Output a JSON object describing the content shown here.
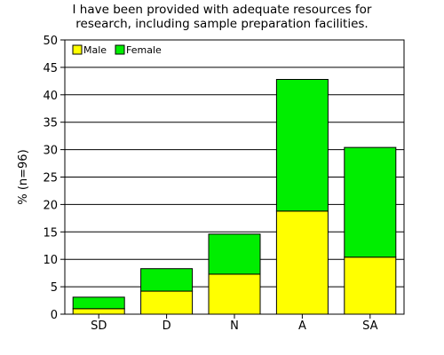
{
  "chart_data": {
    "type": "bar",
    "stacked": true,
    "title_lines": [
      "I have been provided with adequate resources for",
      "research, including sample preparation facilities."
    ],
    "xlabel": "",
    "ylabel": "% (n=96)",
    "categories": [
      "SD",
      "D",
      "N",
      "A",
      "SA"
    ],
    "series": [
      {
        "name": "Male",
        "color": "#ffff00",
        "values": [
          1.0,
          4.2,
          7.3,
          18.8,
          10.4
        ]
      },
      {
        "name": "Female",
        "color": "#00ee00",
        "values": [
          2.1,
          4.1,
          7.3,
          24.0,
          20.0
        ]
      }
    ],
    "ylim": [
      0,
      50
    ],
    "yticks": [
      0,
      5,
      10,
      15,
      20,
      25,
      30,
      35,
      40,
      45,
      50
    ],
    "grid": true,
    "legend_position": "top-left"
  }
}
